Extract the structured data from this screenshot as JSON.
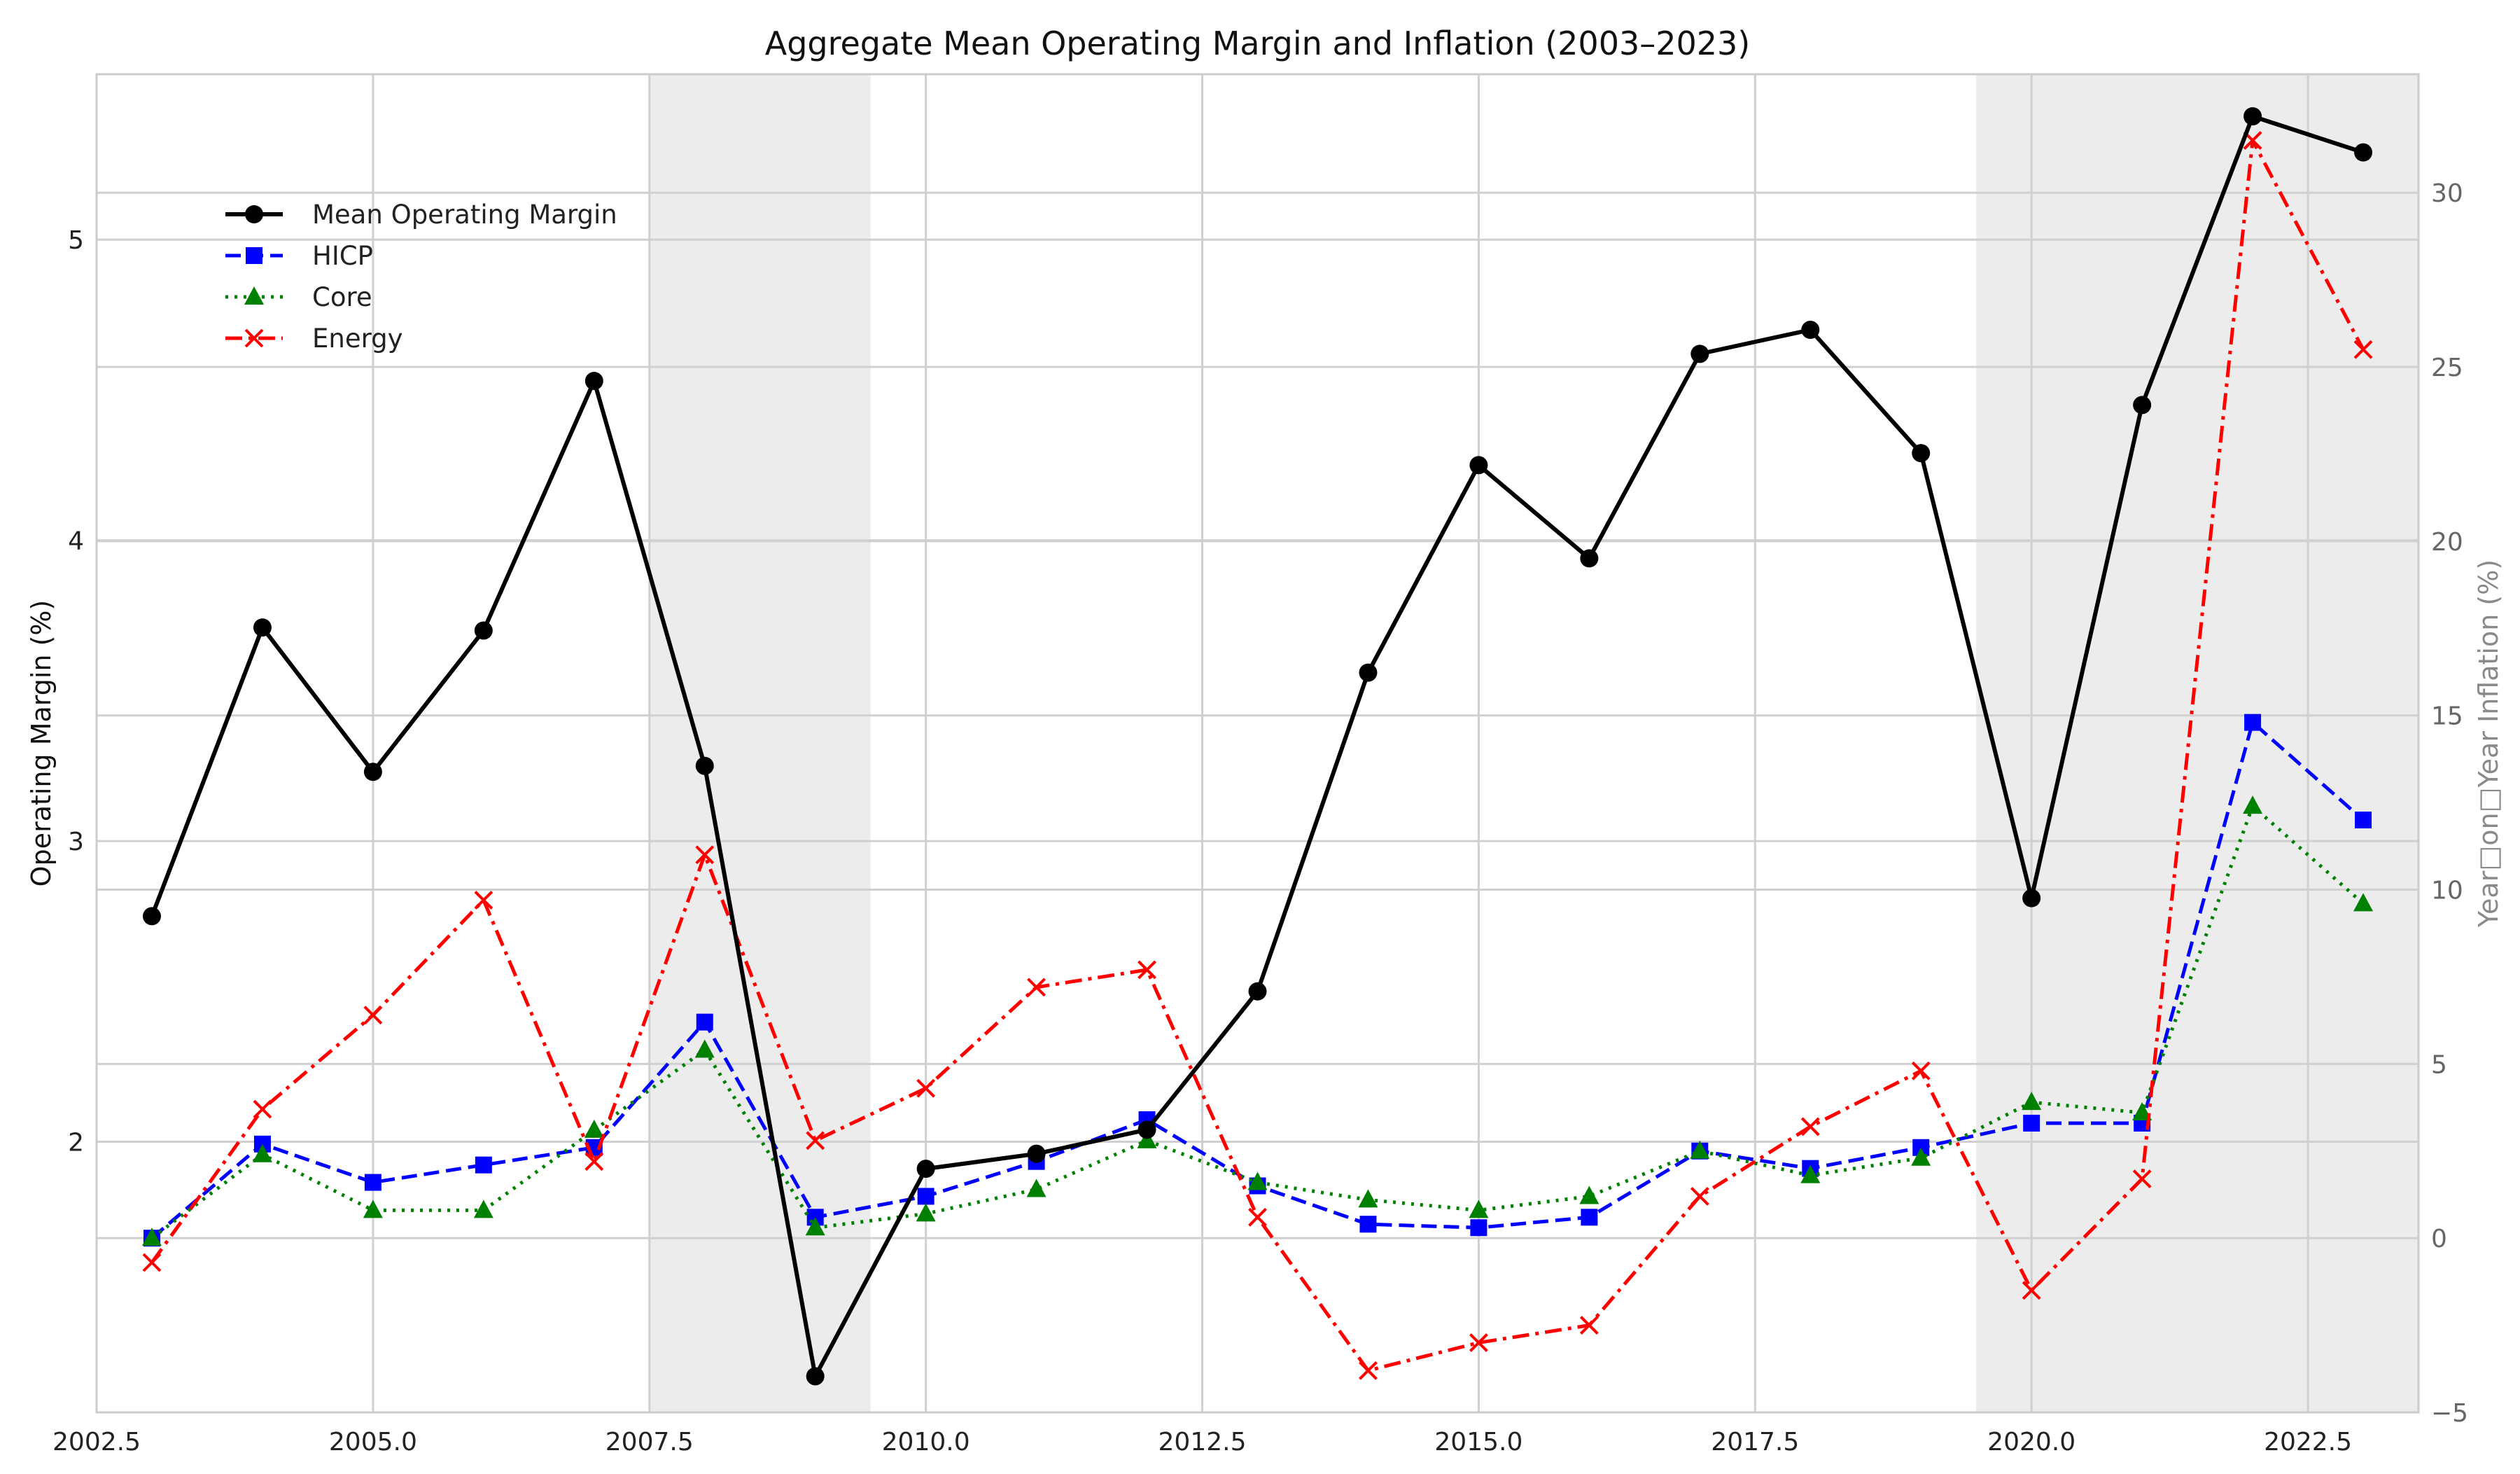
{
  "chart_data": {
    "type": "line",
    "title": "Aggregate Mean Operating Margin and Inflation (2003–2023)",
    "xlabel": "",
    "ylabel_left": "Operating Margin (%)",
    "ylabel_right": "Year□on□Year Inflation (%)",
    "xlim": [
      2002.5,
      2023.5
    ],
    "ylim_left": [
      1.1,
      5.55
    ],
    "ylim_right": [
      -5.0,
      33.4
    ],
    "x_ticks": [
      2002.5,
      2005.0,
      2007.5,
      2010.0,
      2012.5,
      2015.0,
      2017.5,
      2020.0,
      2022.5
    ],
    "x_tick_labels": [
      "2002.5",
      "2005.0",
      "2007.5",
      "2010.0",
      "2012.5",
      "2015.0",
      "2017.5",
      "2020.0",
      "2022.5"
    ],
    "y_left_ticks": [
      2,
      3,
      4,
      5
    ],
    "y_left_tick_labels": [
      "2",
      "3",
      "4",
      "5"
    ],
    "y_right_ticks": [
      -5,
      0,
      5,
      10,
      15,
      20,
      25,
      30
    ],
    "y_right_tick_labels": [
      "−5",
      "0",
      "5",
      "10",
      "15",
      "20",
      "25",
      "30"
    ],
    "grid": true,
    "legend_position": "upper-left",
    "shaded_periods": [
      [
        2007.5,
        2009.5
      ],
      [
        2019.5,
        2020.5
      ],
      [
        2020.5,
        2022.5
      ],
      [
        2022.5,
        2023.5
      ]
    ],
    "x": [
      2003,
      2004,
      2005,
      2006,
      2007,
      2008,
      2009,
      2010,
      2011,
      2012,
      2013,
      2014,
      2015,
      2016,
      2017,
      2018,
      2019,
      2020,
      2021,
      2022,
      2023
    ],
    "series": [
      {
        "name": "Mean Operating Margin",
        "axis": "left",
        "color": "#000000",
        "marker": "circle",
        "linestyle": "solid",
        "values": [
          2.75,
          3.71,
          3.23,
          3.7,
          4.53,
          3.25,
          1.22,
          1.91,
          1.96,
          2.04,
          2.5,
          3.56,
          4.25,
          3.94,
          4.62,
          4.7,
          4.29,
          2.81,
          4.45,
          5.41,
          5.29
        ]
      },
      {
        "name": "HICP",
        "axis": "right",
        "color": "#0000ff",
        "marker": "square",
        "linestyle": "dashed",
        "values": [
          0.0,
          2.7,
          1.6,
          2.1,
          2.6,
          6.2,
          0.6,
          1.2,
          2.2,
          3.4,
          1.5,
          0.4,
          0.3,
          0.6,
          2.5,
          2.0,
          2.6,
          3.3,
          3.3,
          14.8,
          12.0
        ]
      },
      {
        "name": "Core",
        "axis": "right",
        "color": "#008000",
        "marker": "triangle",
        "linestyle": "dotted",
        "values": [
          0.0,
          2.4,
          0.8,
          0.8,
          3.1,
          5.4,
          0.3,
          0.7,
          1.4,
          2.8,
          1.6,
          1.1,
          0.8,
          1.2,
          2.5,
          1.8,
          2.3,
          3.9,
          3.6,
          12.4,
          9.6
        ]
      },
      {
        "name": "Energy",
        "axis": "right",
        "color": "#ff0000",
        "marker": "x",
        "linestyle": "dashdot",
        "values": [
          -0.7,
          3.7,
          6.4,
          9.7,
          2.2,
          11.0,
          2.8,
          4.3,
          7.2,
          7.7,
          0.6,
          -3.8,
          -3.0,
          -2.5,
          1.2,
          3.2,
          4.8,
          -1.5,
          1.7,
          31.5,
          25.5
        ]
      }
    ]
  }
}
